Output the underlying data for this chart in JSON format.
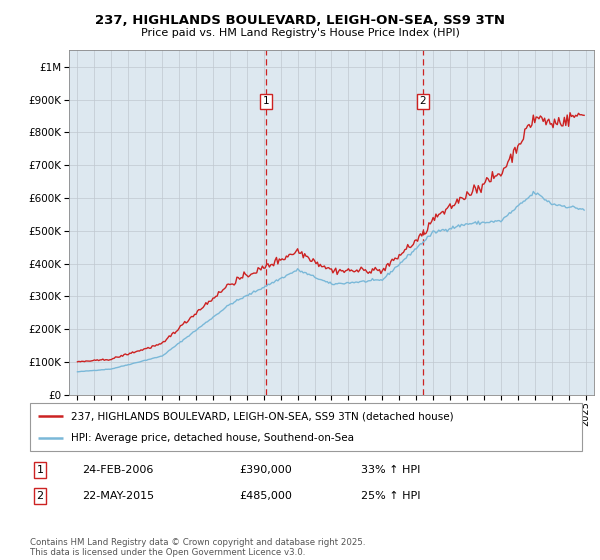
{
  "title_line1": "237, HIGHLANDS BOULEVARD, LEIGH-ON-SEA, SS9 3TN",
  "title_line2": "Price paid vs. HM Land Registry's House Price Index (HPI)",
  "hpi_color": "#7ab8d8",
  "price_color": "#cc2222",
  "bg_color": "#dde8f0",
  "transaction1_date": 2006.14,
  "transaction1_price": 390000,
  "transaction1_label": "1",
  "transaction1_hpi_pct": "33% ↑ HPI",
  "transaction1_date_str": "24-FEB-2006",
  "transaction1_price_str": "£390,000",
  "transaction2_date": 2015.38,
  "transaction2_price": 485000,
  "transaction2_label": "2",
  "transaction2_hpi_pct": "25% ↑ HPI",
  "transaction2_date_str": "22-MAY-2015",
  "transaction2_price_str": "£485,000",
  "ylim": [
    0,
    1050000
  ],
  "xlim_min": 1994.5,
  "xlim_max": 2025.5,
  "footer": "Contains HM Land Registry data © Crown copyright and database right 2025.\nThis data is licensed under the Open Government Licence v3.0.",
  "legend_label1": "237, HIGHLANDS BOULEVARD, LEIGH-ON-SEA, SS9 3TN (detached house)",
  "legend_label2": "HPI: Average price, detached house, Southend-on-Sea"
}
